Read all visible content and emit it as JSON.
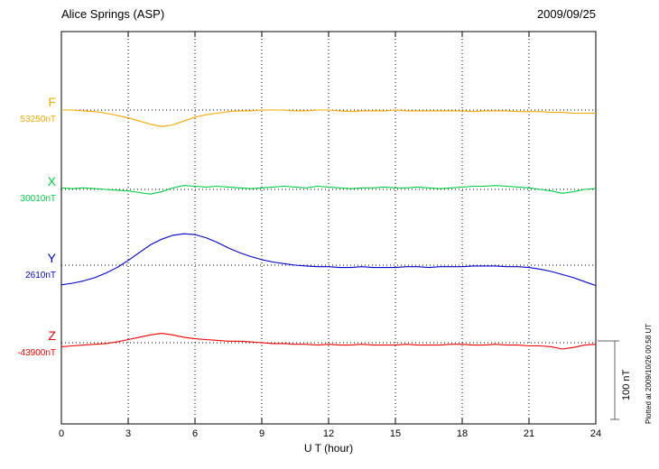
{
  "header": {
    "title": "Alice Springs (ASP)",
    "date": "2009/09/25"
  },
  "x_axis": {
    "label": "U T (hour)"
  },
  "scale_bar": {
    "label": "100 nT",
    "value_nT": 100
  },
  "footnote": "Plotted at 2009/10/26 00:58 UT",
  "chart_data": {
    "type": "line",
    "title": "Alice Springs (ASP)",
    "date": "2009/09/25",
    "xlabel": "U T (hour)",
    "x_range_hours": [
      0,
      24
    ],
    "x_ticks": [
      0,
      3,
      6,
      9,
      12,
      15,
      18,
      21,
      24
    ],
    "x_step_hours": 0.5,
    "units": "nT",
    "grid": "dotted-vertical-every-3h",
    "series": [
      {
        "name": "F",
        "baseline_label": "53250nT",
        "baseline_nT": 53250,
        "color": "#F5A800",
        "offsets_nT": [
          0,
          0,
          -1,
          -2,
          -4,
          -7,
          -10,
          -14,
          -18,
          -21,
          -19,
          -14,
          -9,
          -6,
          -4,
          -2,
          -1,
          -1,
          0,
          0,
          0,
          -1,
          -1,
          0,
          0,
          -1,
          -2,
          -1,
          -1,
          -1,
          0,
          -1,
          -1,
          -1,
          -1,
          -1,
          -1,
          -2,
          -1,
          -1,
          -1,
          -2,
          -2,
          -2,
          -3,
          -3,
          -4,
          -4,
          -4
        ]
      },
      {
        "name": "X",
        "baseline_label": "30010nT",
        "baseline_nT": 30010,
        "color": "#00CC44",
        "offsets_nT": [
          2,
          1,
          2,
          1,
          0,
          -1,
          -2,
          -4,
          -6,
          -3,
          2,
          5,
          4,
          3,
          4,
          3,
          2,
          1,
          2,
          3,
          4,
          3,
          2,
          4,
          3,
          2,
          1,
          2,
          2,
          3,
          2,
          2,
          3,
          2,
          1,
          2,
          3,
          4,
          4,
          5,
          4,
          3,
          2,
          0,
          -2,
          -5,
          -3,
          0,
          1
        ]
      },
      {
        "name": "Y",
        "baseline_label": "2610nT",
        "baseline_nT": 2610,
        "color": "#0000CC",
        "offsets_nT": [
          -25,
          -23,
          -20,
          -16,
          -10,
          -3,
          6,
          16,
          26,
          33,
          38,
          40,
          39,
          35,
          29,
          22,
          16,
          11,
          7,
          4,
          2,
          0,
          -1,
          -2,
          -2,
          -3,
          -3,
          -2,
          -3,
          -3,
          -3,
          -2,
          -2,
          -3,
          -2,
          -2,
          -2,
          -1,
          -1,
          -1,
          -2,
          -2,
          -3,
          -5,
          -8,
          -12,
          -16,
          -21,
          -26
        ]
      },
      {
        "name": "Z",
        "baseline_label": "-43900nT",
        "baseline_nT": -43900,
        "color": "#EE0000",
        "offsets_nT": [
          -5,
          -4,
          -3,
          -2,
          -1,
          1,
          4,
          7,
          10,
          12,
          10,
          7,
          5,
          4,
          3,
          2,
          2,
          1,
          0,
          -1,
          -1,
          -2,
          -2,
          -3,
          -2,
          -3,
          -3,
          -2,
          -3,
          -3,
          -3,
          -2,
          -3,
          -3,
          -3,
          -2,
          -2,
          -3,
          -3,
          -2,
          -3,
          -3,
          -4,
          -4,
          -5,
          -8,
          -6,
          -3,
          -2
        ]
      }
    ]
  }
}
